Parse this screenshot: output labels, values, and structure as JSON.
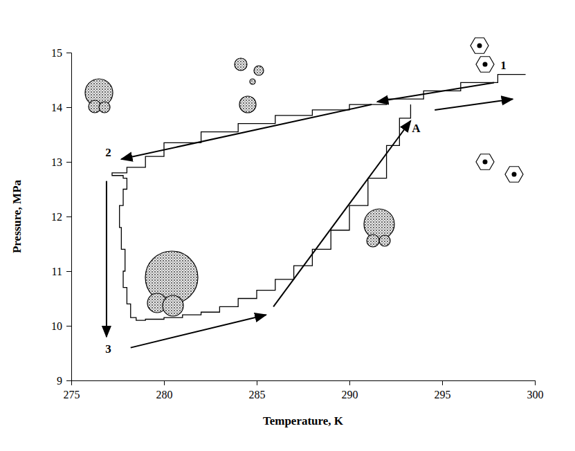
{
  "chart_data": {
    "type": "line",
    "x_label": "Temperature, K",
    "y_label": "Pressure, MPa",
    "xlim": [
      275,
      300
    ],
    "ylim": [
      9,
      15
    ],
    "xticks": [
      275,
      280,
      285,
      290,
      295,
      300
    ],
    "yticks": [
      9,
      10,
      11,
      12,
      13,
      14,
      15
    ],
    "grid": false,
    "series": [
      {
        "color": "#000000",
        "x": [
          299.5,
          298,
          296,
          294,
          292,
          290,
          288,
          286,
          284,
          282,
          280,
          279,
          278,
          277.2,
          277.8,
          278,
          277.8,
          277.6,
          277.7,
          277.9,
          277.8,
          278,
          278.2,
          278.5,
          279,
          280,
          281,
          282,
          283,
          284,
          285,
          286,
          287,
          288,
          289,
          290,
          291,
          292,
          292.7,
          293.3
        ],
        "values": [
          14.6,
          14.45,
          14.3,
          14.15,
          14.05,
          13.95,
          13.85,
          13.7,
          13.55,
          13.35,
          13.1,
          12.9,
          12.8,
          12.75,
          12.7,
          12.5,
          12.2,
          11.8,
          11.4,
          11.0,
          10.7,
          10.4,
          10.15,
          10.1,
          10.12,
          10.15,
          10.2,
          10.25,
          10.35,
          10.5,
          10.65,
          10.85,
          11.1,
          11.4,
          11.75,
          12.2,
          12.7,
          13.3,
          13.8,
          14.05
        ]
      }
    ],
    "annotations": [
      {
        "text": "1",
        "x": 298.3,
        "y": 14.75
      },
      {
        "text": "2",
        "x": 277,
        "y": 13.15
      },
      {
        "text": "3",
        "x": 277,
        "y": 9.55
      },
      {
        "text": "A",
        "x": 293.6,
        "y": 13.6
      }
    ]
  }
}
